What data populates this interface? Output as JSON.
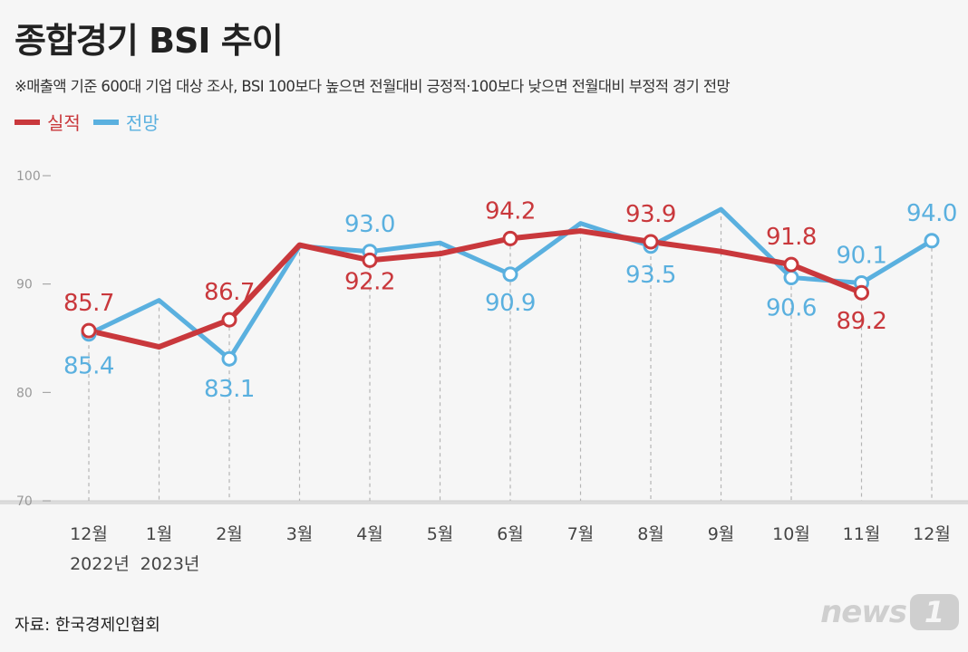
{
  "header": {
    "title": "종합경기 BSI 추이",
    "subtitle": "※매출액 기준 600대 기업 대상 조사, BSI 100보다 높으면 전월대비 긍정적·100보다 낮으면 전월대비 부정적 경기 전망"
  },
  "footer": {
    "source": "자료: 한국경제인협회",
    "logo_text": "news",
    "logo_badge": "1"
  },
  "colors": {
    "actual": "#c9383c",
    "forecast": "#5ab0df"
  },
  "chart_data": {
    "type": "line",
    "title": "종합경기 BSI 추이",
    "categories": [
      "12월",
      "1월",
      "2월",
      "3월",
      "4월",
      "5월",
      "6월",
      "7월",
      "8월",
      "9월",
      "10월",
      "11월",
      "12월"
    ],
    "year_labels": [
      "2022년",
      "2023년",
      "",
      "",
      "",
      "",
      "",
      "",
      "",
      "",
      "",
      "",
      ""
    ],
    "ylim": [
      70,
      100
    ],
    "yticks": [
      70,
      80,
      90,
      100
    ],
    "grid": "vertical-dashed",
    "legend": "top-left",
    "series": [
      {
        "name": "실적",
        "color": "#c9383c",
        "values": [
          85.7,
          84.2,
          86.7,
          93.6,
          92.2,
          92.8,
          94.2,
          94.9,
          93.9,
          93.0,
          91.8,
          89.2,
          null
        ],
        "labeled": [
          {
            "index": 0,
            "label": "85.7"
          },
          {
            "index": 2,
            "label": "86.7"
          },
          {
            "index": 4,
            "label": "92.2"
          },
          {
            "index": 6,
            "label": "94.2"
          },
          {
            "index": 8,
            "label": "93.9"
          },
          {
            "index": 10,
            "label": "91.8"
          },
          {
            "index": 11,
            "label": "89.2"
          }
        ]
      },
      {
        "name": "전망",
        "color": "#5ab0df",
        "values": [
          85.4,
          88.5,
          83.1,
          93.5,
          93.0,
          93.8,
          90.9,
          95.6,
          93.5,
          96.9,
          90.6,
          90.1,
          94.0
        ],
        "labeled": [
          {
            "index": 0,
            "label": "85.4"
          },
          {
            "index": 2,
            "label": "83.1"
          },
          {
            "index": 4,
            "label": "93.0"
          },
          {
            "index": 6,
            "label": "90.9"
          },
          {
            "index": 8,
            "label": "93.5"
          },
          {
            "index": 10,
            "label": "90.6"
          },
          {
            "index": 11,
            "label": "90.1"
          },
          {
            "index": 12,
            "label": "94.0"
          }
        ]
      }
    ]
  }
}
